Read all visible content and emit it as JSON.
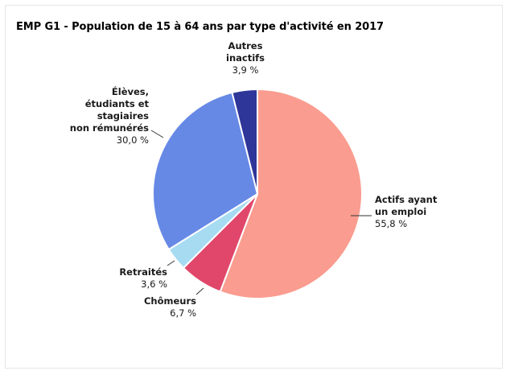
{
  "title": "EMP G1 - Population de 15 à 64 ans par type d'activité en 2017",
  "chart_data": {
    "type": "pie",
    "title": "EMP G1 - Population de 15 à 64 ans par type d'activité en 2017",
    "slices": [
      {
        "label_lines": [
          "Actifs ayant",
          "un emploi"
        ],
        "value": 55.8,
        "value_label": "55,8 %",
        "color": "#fa9c8f"
      },
      {
        "label_lines": [
          "Chômeurs"
        ],
        "value": 6.7,
        "value_label": "6,7 %",
        "color": "#e0476a"
      },
      {
        "label_lines": [
          "Retraités"
        ],
        "value": 3.6,
        "value_label": "3,6 %",
        "color": "#a6dbf2"
      },
      {
        "label_lines": [
          "Élèves,",
          "étudiants et",
          "stagiaires",
          "non rémunérés"
        ],
        "value": 30.0,
        "value_label": "30,0 %",
        "color": "#6689e6"
      },
      {
        "label_lines": [
          "Autres",
          "inactifs"
        ],
        "value": 3.9,
        "value_label": "3,9 %",
        "color": "#2e3699"
      }
    ],
    "start_angle": "top",
    "direction": "clockwise",
    "legend": "none"
  }
}
